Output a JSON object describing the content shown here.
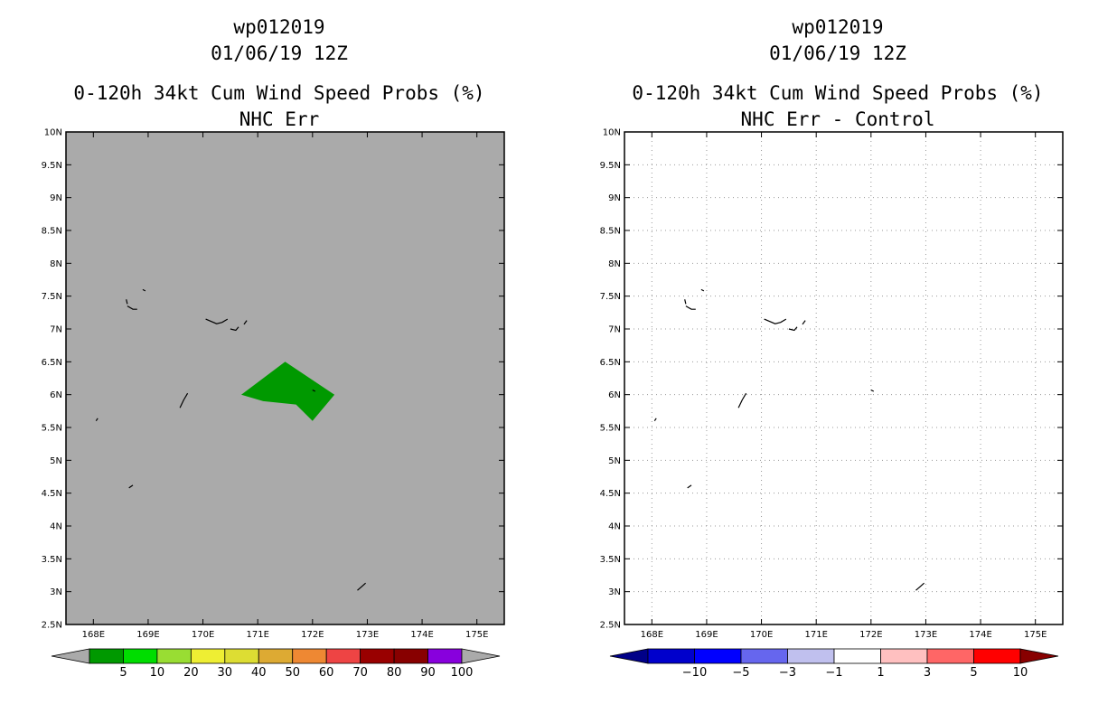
{
  "panels": [
    {
      "id": "left",
      "title": [
        "wp012019",
        "01/06/19 12Z",
        "0-120h 34kt Cum Wind Speed Probs (%)",
        "NHC Err"
      ],
      "background": "#aaaaaa",
      "show_grid": false,
      "colorbar": {
        "labels": [
          "5",
          "10",
          "20",
          "30",
          "40",
          "50",
          "60",
          "70",
          "80",
          "90",
          "100"
        ],
        "colors": [
          "#009900",
          "#00dd00",
          "#99dd33",
          "#eeee33",
          "#dddd33",
          "#ddaa33",
          "#ee8833",
          "#ee4444",
          "#990000",
          "#880000",
          "#8800dd"
        ],
        "end_colors": [
          "#aaaaaa",
          "#aaaaaa"
        ]
      },
      "shaded": [
        {
          "value_range": "5-10",
          "color": "#009900",
          "polygon": [
            [
              170.7,
              6.0
            ],
            [
              171.5,
              6.5
            ],
            [
              172.4,
              6.0
            ],
            [
              172.0,
              5.6
            ],
            [
              171.7,
              5.85
            ],
            [
              171.1,
              5.9
            ]
          ]
        }
      ]
    },
    {
      "id": "right",
      "title": [
        "wp012019",
        "01/06/19 12Z",
        "0-120h 34kt Cum Wind Speed Probs (%)",
        "NHC Err - Control"
      ],
      "background": "#ffffff",
      "show_grid": true,
      "colorbar": {
        "labels": [
          "−10",
          "−5",
          "−3",
          "−1",
          "1",
          "3",
          "5",
          "10"
        ],
        "colors": [
          "#0000cc",
          "#0000ff",
          "#6666ee",
          "#c0c0ee",
          "#ffffff",
          "#ffc0c0",
          "#ff6666",
          "#ff0000"
        ],
        "end_colors": [
          "#000088",
          "#880000"
        ]
      },
      "shaded": []
    }
  ],
  "map": {
    "lon_range": [
      167.5,
      175.5
    ],
    "lat_range": [
      2.5,
      10.0
    ],
    "lon_ticks": [
      "168E",
      "169E",
      "170E",
      "171E",
      "172E",
      "173E",
      "174E",
      "175E"
    ],
    "lon_tick_values": [
      168,
      169,
      170,
      171,
      172,
      173,
      174,
      175
    ],
    "lat_ticks": [
      "2.5N",
      "3N",
      "3.5N",
      "4N",
      "4.5N",
      "5N",
      "5.5N",
      "6N",
      "6.5N",
      "7N",
      "7.5N",
      "8N",
      "8.5N",
      "9N",
      "9.5N",
      "10N"
    ],
    "lat_tick_values": [
      2.5,
      3,
      3.5,
      4,
      4.5,
      5,
      5.5,
      6,
      6.5,
      7,
      7.5,
      8,
      8.5,
      9,
      9.5,
      10
    ]
  },
  "coastlines": [
    [
      [
        168.6,
        7.45
      ],
      [
        168.62,
        7.38
      ]
    ],
    [
      [
        168.62,
        7.35
      ],
      [
        168.72,
        7.3
      ],
      [
        168.8,
        7.3
      ]
    ],
    [
      [
        168.9,
        7.6
      ],
      [
        168.95,
        7.58
      ]
    ],
    [
      [
        170.05,
        7.15
      ],
      [
        170.25,
        7.08
      ],
      [
        170.35,
        7.1
      ],
      [
        170.45,
        7.15
      ]
    ],
    [
      [
        170.5,
        7.0
      ],
      [
        170.6,
        6.98
      ],
      [
        170.65,
        7.03
      ]
    ],
    [
      [
        170.75,
        7.07
      ],
      [
        170.8,
        7.13
      ]
    ],
    [
      [
        169.58,
        5.8
      ],
      [
        169.65,
        5.92
      ],
      [
        169.72,
        6.02
      ]
    ],
    [
      [
        168.05,
        5.6
      ],
      [
        168.08,
        5.64
      ]
    ],
    [
      [
        168.65,
        4.58
      ],
      [
        168.72,
        4.62
      ]
    ],
    [
      [
        172.0,
        6.07
      ],
      [
        172.05,
        6.05
      ]
    ],
    [
      [
        172.82,
        3.02
      ],
      [
        172.9,
        3.08
      ],
      [
        172.97,
        3.13
      ]
    ]
  ]
}
